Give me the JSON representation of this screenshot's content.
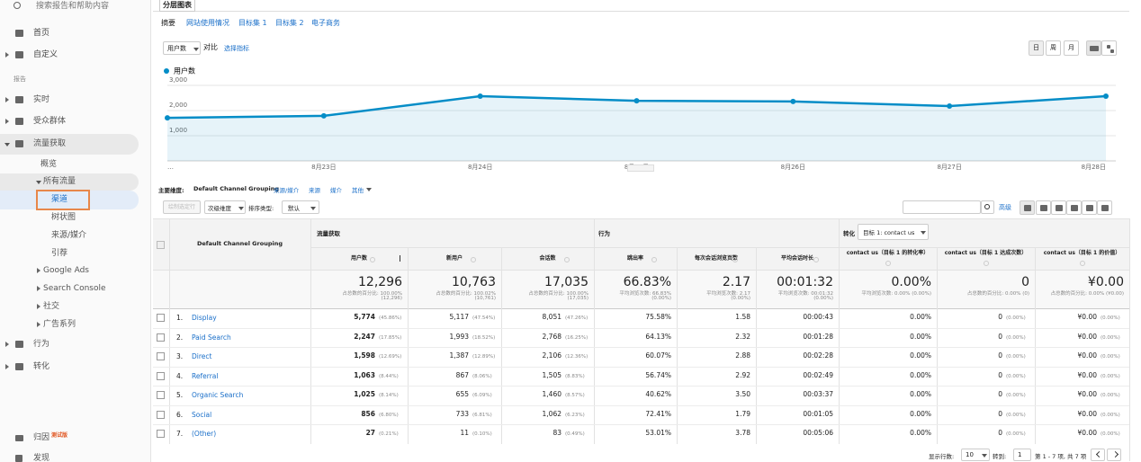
{
  "sidebar": {
    "search": "搜索报告和帮助内容",
    "nav_top": [
      "首页",
      "自定义"
    ],
    "section": "报告",
    "nav": [
      "实时",
      "受众群体",
      "流量获取",
      "概览",
      "所有流量",
      "渠道",
      "树状图",
      "来源/媒介",
      "引荐",
      "Google Ads",
      "Search Console",
      "社交",
      "广告系列",
      "行为",
      "转化"
    ],
    "attribution": "归因",
    "beta": "测试版",
    "discover": "发现"
  },
  "tab": "分层图表",
  "subtabs": [
    "摘要",
    "网站使用情况",
    "目标集 1",
    "目标集 2",
    "电子商务"
  ],
  "metric_select": "用户数",
  "compare": "对比",
  "choose_metric": "选择指标",
  "period_buttons": [
    "日",
    "周",
    "月"
  ],
  "chart": {
    "type": "line",
    "categories": [
      "…",
      "8月23日",
      "8月24日",
      "8月25日",
      "8月26日",
      "8月27日",
      "8月28日"
    ],
    "series": [
      {
        "name": "用户数",
        "color": "#058dc7",
        "values": [
          1710,
          1790,
          2570,
          2390,
          2360,
          2180,
          2570
        ]
      }
    ],
    "ylim": [
      0,
      3000
    ],
    "yticks": [
      {
        "value": 1000,
        "label": "1,000"
      },
      {
        "value": 2000,
        "label": "2,000"
      },
      {
        "value": 3000,
        "label": "3,000"
      }
    ],
    "grid": true
  },
  "dimension_bar": {
    "label": "主要维度:",
    "current": "Default Channel Grouping",
    "options": [
      "来源/媒介",
      "来源",
      "媒介",
      "其他"
    ]
  },
  "toolbar": {
    "plot_rows": "绘制选定行",
    "secondary": "次级维度",
    "sort_label": "排序类型:",
    "sort": "默认",
    "advanced": "高级"
  },
  "table": {
    "groups": [
      "流量获取",
      "行为",
      "转化"
    ],
    "goal_select": "目标 1: contact us",
    "dimension_header": "Default Channel Grouping",
    "columns": [
      "用户数",
      "新用户",
      "会话数",
      "跳出率",
      "每次会话浏览页数",
      "平均会话时长",
      "contact us（目标 1 的转化率）",
      "contact us（目标 1 达成次数）",
      "contact us（目标 1 的价值）"
    ],
    "totals": [
      [
        "12,296",
        "占总数的百分比: 100.00%",
        "(12,296)"
      ],
      [
        "10,763",
        "占总数的百分比: 100.02%",
        "(10,761)"
      ],
      [
        "17,035",
        "占总数的百分比: 100.00%",
        "(17,035)"
      ],
      [
        "66.83%",
        "平均浏览次数: 66.83%",
        "(0.00%)"
      ],
      [
        "2.17",
        "平均浏览次数: 2.17",
        "(0.00%)"
      ],
      [
        "00:01:32",
        "平均浏览次数: 00:01:32",
        "(0.00%)"
      ],
      [
        "0.00%",
        "平均浏览次数: 0.00% (0.00%)"
      ],
      [
        "0",
        "占总数的百分比: 0.00% (0)"
      ],
      [
        "¥0.00",
        "占总数的百分比: 0.00% (¥0.00)"
      ]
    ],
    "rows": [
      {
        "index": "1.",
        "name": "Display",
        "cells": [
          [
            "5,774",
            "(45.86%)"
          ],
          [
            "5,117",
            "(47.54%)"
          ],
          [
            "8,051",
            "(47.26%)"
          ],
          [
            "75.58%"
          ],
          [
            "1.58"
          ],
          [
            "00:00:43"
          ],
          [
            "0.00%"
          ],
          [
            "0",
            "(0.00%)"
          ],
          [
            "¥0.00",
            "(0.00%)"
          ]
        ]
      },
      {
        "index": "2.",
        "name": "Paid Search",
        "cells": [
          [
            "2,247",
            "(17.85%)"
          ],
          [
            "1,993",
            "(18.52%)"
          ],
          [
            "2,768",
            "(16.25%)"
          ],
          [
            "64.13%"
          ],
          [
            "2.32"
          ],
          [
            "00:01:28"
          ],
          [
            "0.00%"
          ],
          [
            "0",
            "(0.00%)"
          ],
          [
            "¥0.00",
            "(0.00%)"
          ]
        ]
      },
      {
        "index": "3.",
        "name": "Direct",
        "cells": [
          [
            "1,598",
            "(12.69%)"
          ],
          [
            "1,387",
            "(12.89%)"
          ],
          [
            "2,106",
            "(12.36%)"
          ],
          [
            "60.07%"
          ],
          [
            "2.88"
          ],
          [
            "00:02:28"
          ],
          [
            "0.00%"
          ],
          [
            "0",
            "(0.00%)"
          ],
          [
            "¥0.00",
            "(0.00%)"
          ]
        ]
      },
      {
        "index": "4.",
        "name": "Referral",
        "cells": [
          [
            "1,063",
            "(8.44%)"
          ],
          [
            "867",
            "(8.06%)"
          ],
          [
            "1,505",
            "(8.83%)"
          ],
          [
            "56.74%"
          ],
          [
            "2.92"
          ],
          [
            "00:02:49"
          ],
          [
            "0.00%"
          ],
          [
            "0",
            "(0.00%)"
          ],
          [
            "¥0.00",
            "(0.00%)"
          ]
        ]
      },
      {
        "index": "5.",
        "name": "Organic Search",
        "cells": [
          [
            "1,025",
            "(8.14%)"
          ],
          [
            "655",
            "(6.09%)"
          ],
          [
            "1,460",
            "(8.57%)"
          ],
          [
            "40.62%"
          ],
          [
            "3.50"
          ],
          [
            "00:03:37"
          ],
          [
            "0.00%"
          ],
          [
            "0",
            "(0.00%)"
          ],
          [
            "¥0.00",
            "(0.00%)"
          ]
        ]
      },
      {
        "index": "6.",
        "name": "Social",
        "cells": [
          [
            "856",
            "(6.80%)"
          ],
          [
            "733",
            "(6.81%)"
          ],
          [
            "1,062",
            "(6.23%)"
          ],
          [
            "72.41%"
          ],
          [
            "1.79"
          ],
          [
            "00:01:05"
          ],
          [
            "0.00%"
          ],
          [
            "0",
            "(0.00%)"
          ],
          [
            "¥0.00",
            "(0.00%)"
          ]
        ]
      },
      {
        "index": "7.",
        "name": "(Other)",
        "cells": [
          [
            "27",
            "(0.21%)"
          ],
          [
            "11",
            "(0.10%)"
          ],
          [
            "83",
            "(0.49%)"
          ],
          [
            "53.01%"
          ],
          [
            "3.78"
          ],
          [
            "00:05:06"
          ],
          [
            "0.00%"
          ],
          [
            "0",
            "(0.00%)"
          ],
          [
            "¥0.00",
            "(0.00%)"
          ]
        ]
      }
    ]
  },
  "footer": {
    "rows_label": "显示行数:",
    "rows_value": "10",
    "goto_label": "转到:",
    "goto_value": "1",
    "range": "第 1 - 7 项, 共 7 项"
  }
}
